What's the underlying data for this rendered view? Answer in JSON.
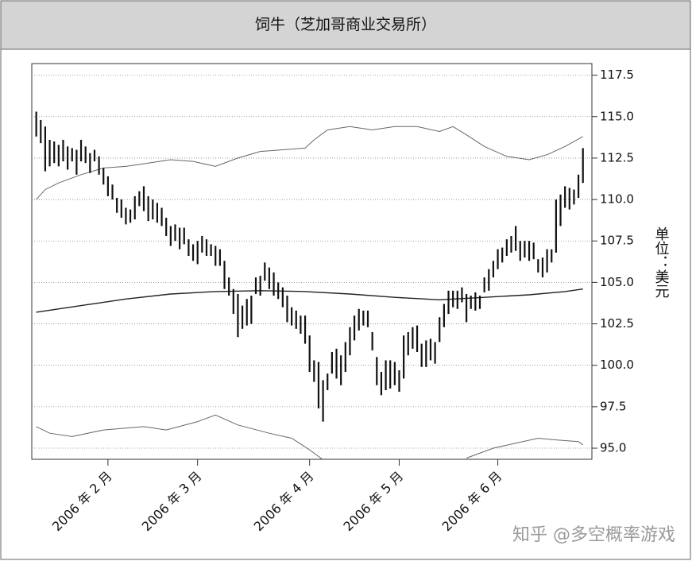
{
  "chart_data": {
    "type": "ohlc",
    "title": "饲牛（芝加哥商业交易所）",
    "y_label": "单位：美元",
    "watermark": "知乎 @多空概率游戏",
    "color": "#111111",
    "x": [
      0,
      1,
      2,
      3,
      4,
      5,
      6,
      7,
      8,
      9,
      10,
      11,
      12,
      13,
      14,
      15,
      16,
      17,
      18,
      19,
      20,
      21,
      22,
      23,
      24,
      25,
      26,
      27,
      28,
      29,
      30,
      31,
      32,
      33,
      34,
      35,
      36,
      37,
      38,
      39,
      40,
      41,
      42,
      43,
      44,
      45,
      46,
      47,
      48,
      49,
      50,
      51,
      52,
      53,
      54,
      55,
      56,
      57,
      58,
      59,
      60,
      61,
      62,
      63,
      64,
      65,
      66,
      67,
      68,
      69,
      70,
      71,
      72,
      73,
      74,
      75,
      76,
      77,
      78,
      79,
      80,
      81,
      82,
      83,
      84,
      85,
      86,
      87,
      88,
      89,
      90,
      91,
      92,
      93,
      94,
      95,
      96,
      97,
      98,
      99,
      100,
      101,
      102,
      103,
      104,
      105,
      106,
      107,
      108,
      109,
      110,
      111,
      112,
      113,
      114,
      115,
      116,
      117,
      118,
      119,
      120,
      121,
      122
    ],
    "high": [
      115.3,
      114.8,
      114.4,
      113.6,
      113.5,
      113.3,
      113.6,
      113.2,
      113.1,
      113.0,
      113.6,
      113.2,
      112.8,
      113.0,
      112.6,
      111.9,
      111.4,
      110.9,
      110.1,
      110.0,
      109.5,
      109.4,
      110.2,
      110.5,
      110.8,
      110.2,
      110.0,
      109.8,
      109.5,
      108.9,
      108.4,
      108.5,
      108.3,
      108.3,
      107.6,
      107.3,
      107.5,
      107.8,
      107.6,
      107.3,
      107.2,
      107.0,
      106.3,
      105.3,
      104.6,
      104.3,
      103.6,
      104.0,
      104.2,
      105.3,
      105.4,
      106.2,
      105.9,
      105.6,
      105.0,
      104.7,
      104.2,
      103.5,
      103.3,
      103.0,
      103.0,
      101.8,
      100.3,
      100.2,
      99.1,
      99.5,
      100.8,
      101.0,
      100.6,
      101.4,
      102.3,
      103.0,
      103.4,
      103.3,
      103.3,
      102.0,
      100.5,
      99.6,
      100.3,
      100.3,
      100.2,
      99.7,
      101.8,
      102.0,
      102.3,
      102.4,
      101.3,
      101.5,
      101.6,
      101.4,
      102.9,
      103.7,
      104.5,
      104.5,
      104.5,
      104.7,
      104.3,
      104.2,
      104.4,
      104.2,
      105.3,
      105.8,
      106.3,
      107.0,
      107.1,
      107.6,
      107.8,
      108.4,
      107.5,
      107.5,
      107.5,
      107.4,
      106.4,
      106.5,
      107.0,
      107.0,
      110.0,
      110.3,
      110.8,
      110.7,
      110.6,
      111.5,
      113.1
    ],
    "low": [
      113.8,
      113.4,
      111.7,
      112.0,
      112.2,
      112.0,
      112.3,
      111.8,
      112.3,
      111.5,
      112.3,
      112.2,
      111.6,
      112.3,
      111.5,
      110.9,
      110.2,
      110.0,
      109.2,
      108.9,
      108.5,
      108.6,
      108.8,
      109.6,
      109.3,
      108.7,
      108.8,
      108.6,
      108.4,
      107.8,
      107.2,
      107.5,
      107.0,
      107.3,
      106.6,
      106.3,
      106.1,
      106.8,
      106.6,
      106.6,
      106.0,
      106.0,
      104.6,
      104.2,
      103.1,
      101.7,
      102.2,
      102.4,
      102.5,
      104.3,
      104.2,
      105.1,
      104.6,
      104.2,
      104.0,
      103.5,
      102.6,
      102.4,
      102.2,
      101.9,
      101.3,
      99.6,
      99.0,
      97.4,
      96.6,
      98.5,
      99.5,
      99.2,
      98.8,
      99.6,
      100.6,
      101.5,
      102.1,
      102.4,
      102.3,
      100.9,
      98.8,
      98.2,
      98.5,
      98.6,
      98.8,
      98.4,
      99.2,
      100.6,
      101.0,
      100.8,
      99.9,
      99.9,
      100.3,
      100.1,
      101.4,
      102.3,
      103.1,
      103.5,
      103.4,
      103.8,
      102.6,
      103.4,
      103.3,
      103.4,
      104.4,
      104.5,
      105.3,
      105.8,
      106.2,
      106.6,
      106.8,
      106.9,
      106.3,
      106.5,
      106.3,
      106.4,
      105.6,
      105.3,
      105.6,
      106.2,
      106.8,
      108.4,
      109.5,
      109.4,
      109.7,
      110.1,
      111.0
    ],
    "lines": [
      {
        "color": "#222222",
        "x": [
          0,
          10,
          20,
          30,
          40,
          50,
          60,
          70,
          80,
          90,
          100,
          110,
          118,
          122
        ],
        "values": [
          103.2,
          103.6,
          104.0,
          104.3,
          104.45,
          104.5,
          104.45,
          104.3,
          104.1,
          103.95,
          104.1,
          104.25,
          104.45,
          104.6
        ]
      },
      {
        "color": "#666666",
        "x": [
          0,
          2,
          5,
          10,
          15,
          20,
          25,
          30,
          35,
          40,
          45,
          50,
          55,
          60,
          62,
          65,
          70,
          75,
          80,
          85,
          90,
          93,
          96,
          100,
          105,
          110,
          114,
          118,
          122
        ],
        "values": [
          110.0,
          110.6,
          111.0,
          111.5,
          111.9,
          112.0,
          112.2,
          112.4,
          112.3,
          112.0,
          112.5,
          112.9,
          113.0,
          113.1,
          113.6,
          114.2,
          114.4,
          114.2,
          114.4,
          114.4,
          114.1,
          114.4,
          113.9,
          113.2,
          112.6,
          112.4,
          112.7,
          113.2,
          113.8
        ]
      },
      {
        "color": "#666666",
        "x": [
          0,
          3,
          8,
          15,
          24,
          29,
          36,
          40,
          45,
          52,
          57,
          61,
          64,
          65,
          96,
          102,
          107,
          112,
          116,
          121,
          122
        ],
        "values": [
          96.3,
          95.9,
          95.7,
          96.1,
          96.3,
          96.1,
          96.6,
          97.0,
          96.4,
          95.9,
          95.6,
          94.9,
          94.3,
          null,
          94.4,
          95.0,
          95.3,
          95.6,
          95.5,
          95.4,
          95.2
        ]
      }
    ],
    "xlim": [
      -1,
      124
    ],
    "xticks": [
      {
        "value": 16,
        "label": "2006 年 2 月"
      },
      {
        "value": 36,
        "label": "2006 年 3 月"
      },
      {
        "value": 61,
        "label": "2006 年 4 月"
      },
      {
        "value": 81,
        "label": "2006 年 5 月"
      },
      {
        "value": 103,
        "label": "2006 年 6 月"
      }
    ],
    "ylim": [
      94.33,
      118.2
    ],
    "yticks": [
      {
        "value": 95,
        "label": "95.0"
      },
      97.5,
      {
        "value": 100,
        "label": "100.0"
      },
      102.5,
      {
        "value": 105,
        "label": "105.0"
      },
      107.5,
      {
        "value": 110,
        "label": "110.0"
      },
      112.5,
      {
        "value": 115,
        "label": "115.0"
      },
      117.5
    ],
    "grid": true
  }
}
